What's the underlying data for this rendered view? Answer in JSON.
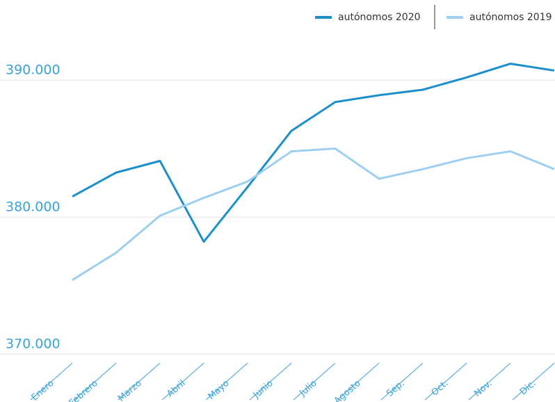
{
  "chart_data": {
    "type": "line",
    "categories": [
      "Enero",
      "Febrero",
      "Marzo",
      "Abril",
      "Mayo",
      "Junio",
      "Julio",
      "Agosto",
      "Sep.",
      "Oct.",
      "Nov.",
      "Dic."
    ],
    "series": [
      {
        "name": "autónomos 2020",
        "color": "#1a8fcb",
        "values": [
          381500,
          383250,
          384100,
          378200,
          382200,
          386300,
          388400,
          388900,
          389300,
          390200,
          391200,
          390700
        ]
      },
      {
        "name": "autónomos 2019",
        "color": "#9dcff0",
        "values": [
          375400,
          377400,
          380100,
          381400,
          382600,
          384800,
          385000,
          382800,
          383500,
          384300,
          384800,
          383500
        ]
      }
    ],
    "ylim": [
      370000,
      392500
    ],
    "yticks": [
      {
        "value": 370000,
        "label": "370.000"
      },
      {
        "value": 380000,
        "label": "380.000"
      },
      {
        "value": 390000,
        "label": "390.000"
      }
    ],
    "grid": true
  }
}
